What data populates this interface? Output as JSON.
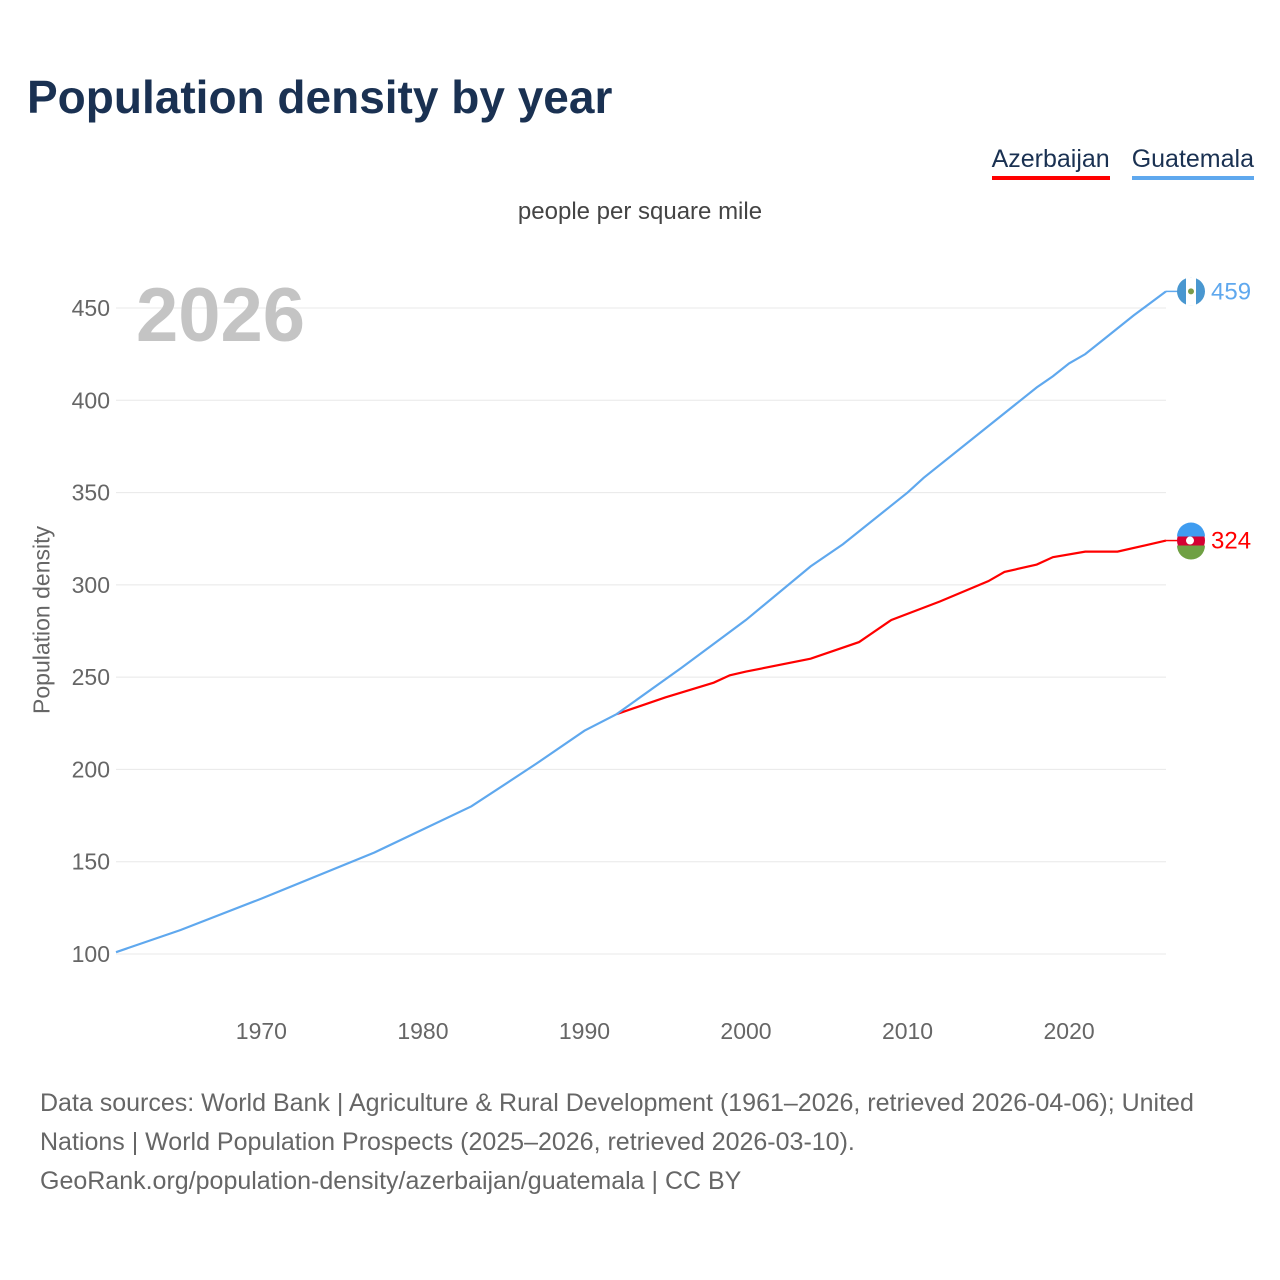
{
  "title": "Population density by year",
  "chart_data": {
    "type": "line",
    "title": "Population density by year",
    "subtitle": "people per square mile",
    "ylabel": "Population density",
    "xlabel": "",
    "current_year": "2026",
    "xlim": [
      1961,
      2026
    ],
    "ylim": [
      75,
      475
    ],
    "x_ticks": [
      1970,
      1980,
      1990,
      2000,
      2010,
      2020
    ],
    "y_ticks": [
      100,
      150,
      200,
      250,
      300,
      350,
      400,
      450
    ],
    "grid": true,
    "legend": "top-right",
    "series": [
      {
        "name": "Azerbaijan",
        "color": "#ff0000",
        "end_label": "324",
        "x": [
          1992,
          1995,
          1998,
          1999,
          2000,
          2004,
          2007,
          2009,
          2012,
          2015,
          2016,
          2018,
          2019,
          2021,
          2023,
          2026
        ],
        "y": [
          230,
          239,
          247,
          251,
          253,
          260,
          269,
          281,
          291,
          302,
          307,
          311,
          315,
          318,
          318,
          324
        ]
      },
      {
        "name": "Guatemala",
        "color": "#5fa8ee",
        "end_label": "459",
        "x": [
          1961,
          1965,
          1970,
          1977,
          1983,
          1987,
          1990,
          1992,
          1996,
          2000,
          2004,
          2006,
          2010,
          2011,
          2015,
          2018,
          2019,
          2020,
          2021,
          2022,
          2024,
          2026
        ],
        "y": [
          101,
          113,
          130,
          155,
          180,
          203,
          221,
          230,
          255,
          281,
          310,
          322,
          350,
          358,
          386,
          407,
          413,
          420,
          425,
          432,
          446,
          459
        ]
      }
    ]
  },
  "footer": {
    "line1": "Data sources: World Bank | Agriculture & Rural Development (1961–2026, retrieved 2026-04-06); United Nations | World Population Prospects (2025–2026, retrieved 2026-03-10).",
    "line2": "GeoRank.org/population-density/azerbaijan/guatemala | CC BY"
  }
}
